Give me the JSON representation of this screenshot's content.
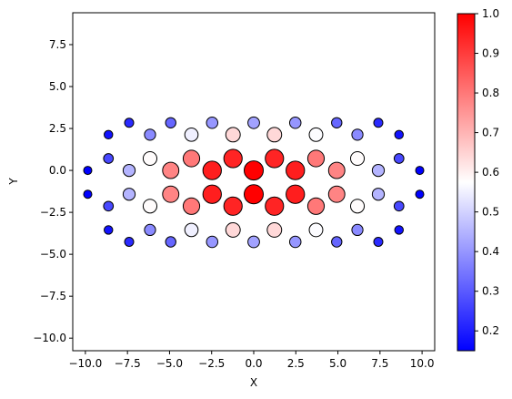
{
  "chart_data": {
    "type": "scatter",
    "title": "",
    "xlabel": "X",
    "ylabel": "Y",
    "xlim": [
      -10.75,
      10.75
    ],
    "ylim": [
      -10.75,
      9.4
    ],
    "x_ticks": [
      -10.0,
      -7.5,
      -5.0,
      -2.5,
      0.0,
      2.5,
      5.0,
      7.5,
      10.0
    ],
    "x_tick_labels": [
      "−10.0",
      "−7.5",
      "−5.0",
      "−2.5",
      "0.0",
      "2.5",
      "5.0",
      "7.5",
      "10.0"
    ],
    "y_ticks": [
      -10.0,
      -7.5,
      -5.0,
      -2.5,
      0.0,
      2.5,
      5.0,
      7.5
    ],
    "y_tick_labels": [
      "−10.0",
      "−7.5",
      "−5.0",
      "−2.5",
      "0.0",
      "2.5",
      "5.0",
      "7.5"
    ],
    "grid": false,
    "colormap": "bwr",
    "colorbar": {
      "range": [
        0.15,
        1.0
      ],
      "ticks": [
        0.2,
        0.3,
        0.4,
        0.5,
        0.6,
        0.7,
        0.8,
        0.9,
        1.0
      ],
      "tick_labels": [
        "0.2",
        "0.3",
        "0.4",
        "0.5",
        "0.6",
        "0.7",
        "0.8",
        "0.9",
        "1.0"
      ]
    },
    "point_encoding": "marker color and marker size both encode the value",
    "points": [
      {
        "x": -9.86,
        "y": 0.0,
        "value": 0.15
      },
      {
        "x": -9.86,
        "y": -1.42,
        "value": 0.15
      },
      {
        "x": -8.63,
        "y": 2.13,
        "value": 0.18
      },
      {
        "x": -8.63,
        "y": 0.71,
        "value": 0.27
      },
      {
        "x": -8.63,
        "y": -2.13,
        "value": 0.27
      },
      {
        "x": -8.63,
        "y": -3.55,
        "value": 0.18
      },
      {
        "x": -7.4,
        "y": 2.84,
        "value": 0.22
      },
      {
        "x": -7.4,
        "y": 0.0,
        "value": 0.45
      },
      {
        "x": -7.4,
        "y": -1.42,
        "value": 0.45
      },
      {
        "x": -7.4,
        "y": -4.26,
        "value": 0.22
      },
      {
        "x": -6.16,
        "y": 2.13,
        "value": 0.38
      },
      {
        "x": -6.16,
        "y": 0.71,
        "value": 0.58
      },
      {
        "x": -6.16,
        "y": -2.13,
        "value": 0.58
      },
      {
        "x": -6.16,
        "y": -3.55,
        "value": 0.38
      },
      {
        "x": -4.93,
        "y": 2.84,
        "value": 0.32
      },
      {
        "x": -4.93,
        "y": 0.0,
        "value": 0.78
      },
      {
        "x": -4.93,
        "y": -1.42,
        "value": 0.78
      },
      {
        "x": -4.93,
        "y": -4.26,
        "value": 0.32
      },
      {
        "x": -3.7,
        "y": 2.13,
        "value": 0.55
      },
      {
        "x": -3.7,
        "y": 0.71,
        "value": 0.8
      },
      {
        "x": -3.7,
        "y": -2.13,
        "value": 0.8
      },
      {
        "x": -3.7,
        "y": -3.55,
        "value": 0.55
      },
      {
        "x": -2.47,
        "y": 2.84,
        "value": 0.4
      },
      {
        "x": -2.47,
        "y": 0.0,
        "value": 0.95
      },
      {
        "x": -2.47,
        "y": -1.42,
        "value": 0.95
      },
      {
        "x": -2.47,
        "y": -4.26,
        "value": 0.4
      },
      {
        "x": -1.23,
        "y": 2.13,
        "value": 0.64
      },
      {
        "x": -1.23,
        "y": 0.71,
        "value": 0.94
      },
      {
        "x": -1.23,
        "y": -2.13,
        "value": 0.94
      },
      {
        "x": -1.23,
        "y": -3.55,
        "value": 0.64
      },
      {
        "x": 0.0,
        "y": 2.84,
        "value": 0.42
      },
      {
        "x": 0.0,
        "y": 0.0,
        "value": 1.0
      },
      {
        "x": 0.0,
        "y": -1.42,
        "value": 1.0
      },
      {
        "x": 0.0,
        "y": -4.26,
        "value": 0.42
      },
      {
        "x": 1.23,
        "y": 2.13,
        "value": 0.64
      },
      {
        "x": 1.23,
        "y": 0.71,
        "value": 0.94
      },
      {
        "x": 1.23,
        "y": -2.13,
        "value": 0.94
      },
      {
        "x": 1.23,
        "y": -3.55,
        "value": 0.64
      },
      {
        "x": 2.47,
        "y": 2.84,
        "value": 0.4
      },
      {
        "x": 2.47,
        "y": 0.0,
        "value": 0.95
      },
      {
        "x": 2.47,
        "y": -1.42,
        "value": 0.95
      },
      {
        "x": 2.47,
        "y": -4.26,
        "value": 0.4
      },
      {
        "x": 3.7,
        "y": 2.13,
        "value": 0.57
      },
      {
        "x": 3.7,
        "y": 0.71,
        "value": 0.8
      },
      {
        "x": 3.7,
        "y": -2.13,
        "value": 0.8
      },
      {
        "x": 3.7,
        "y": -3.55,
        "value": 0.57
      },
      {
        "x": 4.93,
        "y": 2.84,
        "value": 0.32
      },
      {
        "x": 4.93,
        "y": 0.0,
        "value": 0.78
      },
      {
        "x": 4.93,
        "y": -1.42,
        "value": 0.78
      },
      {
        "x": 4.93,
        "y": -4.26,
        "value": 0.32
      },
      {
        "x": 6.16,
        "y": 2.13,
        "value": 0.38
      },
      {
        "x": 6.16,
        "y": 0.71,
        "value": 0.58
      },
      {
        "x": 6.16,
        "y": -2.13,
        "value": 0.58
      },
      {
        "x": 6.16,
        "y": -3.55,
        "value": 0.38
      },
      {
        "x": 7.4,
        "y": 2.84,
        "value": 0.22
      },
      {
        "x": 7.4,
        "y": 0.0,
        "value": 0.45
      },
      {
        "x": 7.4,
        "y": -1.42,
        "value": 0.45
      },
      {
        "x": 7.4,
        "y": -4.26,
        "value": 0.22
      },
      {
        "x": 8.63,
        "y": 2.13,
        "value": 0.18
      },
      {
        "x": 8.63,
        "y": 0.71,
        "value": 0.27
      },
      {
        "x": 8.63,
        "y": -2.13,
        "value": 0.27
      },
      {
        "x": 8.63,
        "y": -3.55,
        "value": 0.18
      },
      {
        "x": 9.86,
        "y": 0.0,
        "value": 0.15
      },
      {
        "x": 9.86,
        "y": -1.42,
        "value": 0.15
      }
    ]
  }
}
